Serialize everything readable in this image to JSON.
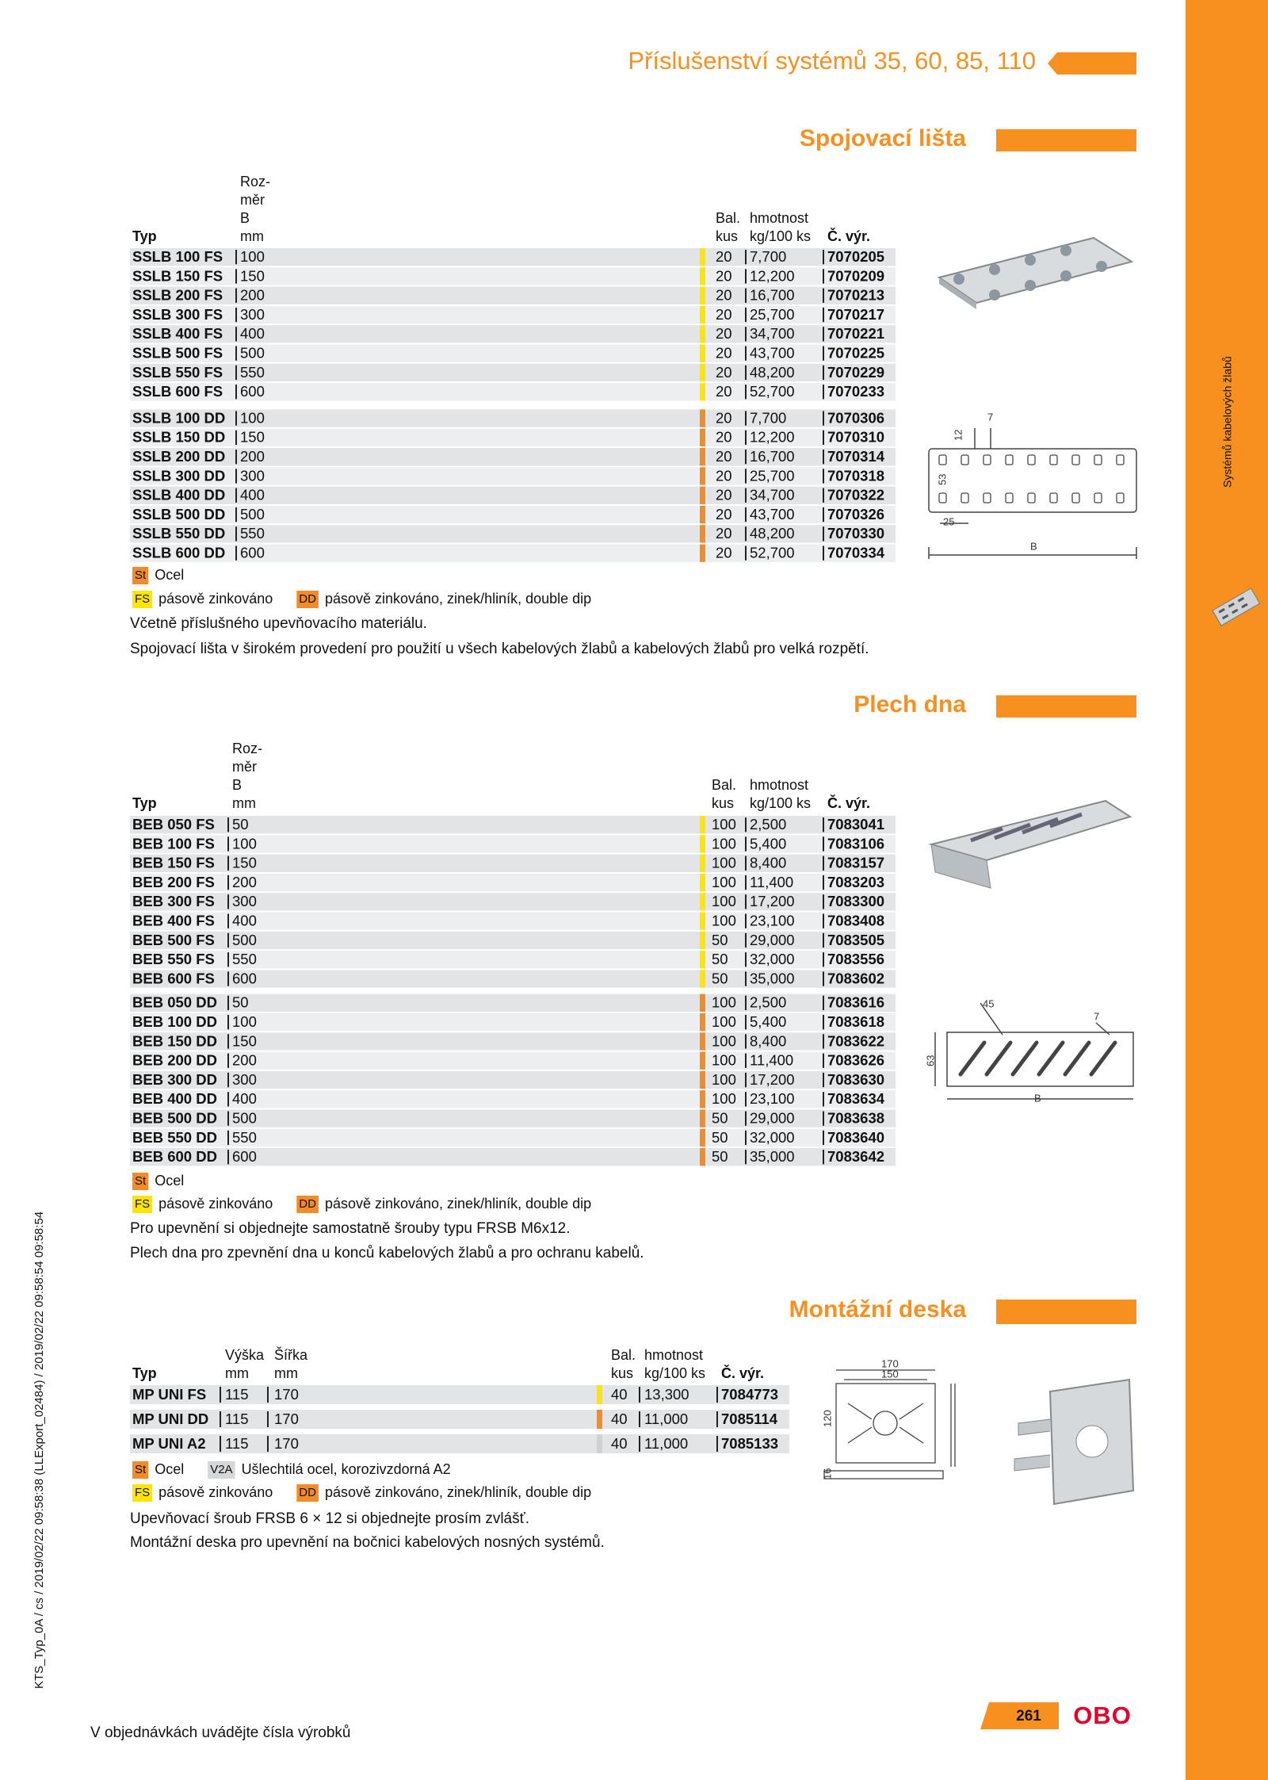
{
  "header": {
    "title": "Příslušenství systémů 35, 60, 85, 110"
  },
  "side_label": "Systémů kabelových žlabů",
  "margin_note": "KTS_Typ_0A / cs / 2019/02/22 09:58:38 (LLExport_02484) / 2019/02/22 09:58:54 09:58:54",
  "sections": [
    {
      "title": "Spojovací lišta",
      "columns": [
        [
          "Typ"
        ],
        [
          "Roz-",
          "měr",
          "B",
          "mm"
        ],
        [
          "Bal.",
          "kus"
        ],
        [
          "hmotnost",
          "kg/100 ks"
        ],
        [
          "Č. výr."
        ]
      ],
      "groups": [
        [
          [
            "SSLB 100 FS",
            "100",
            "20",
            "7,700",
            "7070205"
          ],
          [
            "SSLB 150 FS",
            "150",
            "20",
            "12,200",
            "7070209"
          ],
          [
            "SSLB 200 FS",
            "200",
            "20",
            "16,700",
            "7070213"
          ],
          [
            "SSLB 300 FS",
            "300",
            "20",
            "25,700",
            "7070217"
          ],
          [
            "SSLB 400 FS",
            "400",
            "20",
            "34,700",
            "7070221"
          ],
          [
            "SSLB 500 FS",
            "500",
            "20",
            "43,700",
            "7070225"
          ],
          [
            "SSLB 550 FS",
            "550",
            "20",
            "48,200",
            "7070229"
          ],
          [
            "SSLB 600 FS",
            "600",
            "20",
            "52,700",
            "7070233"
          ]
        ],
        [
          [
            "SSLB 100 DD",
            "100",
            "20",
            "7,700",
            "7070306"
          ],
          [
            "SSLB 150 DD",
            "150",
            "20",
            "12,200",
            "7070310"
          ],
          [
            "SSLB 200 DD",
            "200",
            "20",
            "16,700",
            "7070314"
          ],
          [
            "SSLB 300 DD",
            "300",
            "20",
            "25,700",
            "7070318"
          ],
          [
            "SSLB 400 DD",
            "400",
            "20",
            "34,700",
            "7070322"
          ],
          [
            "SSLB 500 DD",
            "500",
            "20",
            "43,700",
            "7070326"
          ],
          [
            "SSLB 550 DD",
            "550",
            "20",
            "48,200",
            "7070330"
          ],
          [
            "SSLB 600 DD",
            "600",
            "20",
            "52,700",
            "7070334"
          ]
        ]
      ],
      "legend": [
        [
          {
            "code": "St",
            "text": "Ocel"
          }
        ],
        [
          {
            "code": "FS",
            "text": "pásově zinkováno"
          },
          {
            "code": "DD",
            "text": "pásově zinkováno, zinek/hliník, double dip"
          }
        ]
      ],
      "notes": [
        "Včetně příslušného upevňovacího materiálu.",
        "Spojovací lišta v širokém provedení pro použití u všech kabelových žlabů a kabelových žlabů pro velká rozpětí."
      ],
      "drawing_labels": [
        "7",
        "12",
        "53",
        "25",
        "B"
      ]
    },
    {
      "title": "Plech dna",
      "columns": [
        [
          "Typ"
        ],
        [
          "Roz-",
          "měr",
          "B",
          "mm"
        ],
        [
          "Bal.",
          "kus"
        ],
        [
          "hmotnost",
          "kg/100 ks"
        ],
        [
          "Č. výr."
        ]
      ],
      "groups": [
        [
          [
            "BEB 050 FS",
            "50",
            "100",
            "2,500",
            "7083041"
          ],
          [
            "BEB 100 FS",
            "100",
            "100",
            "5,400",
            "7083106"
          ],
          [
            "BEB 150 FS",
            "150",
            "100",
            "8,400",
            "7083157"
          ],
          [
            "BEB 200 FS",
            "200",
            "100",
            "11,400",
            "7083203"
          ],
          [
            "BEB 300 FS",
            "300",
            "100",
            "17,200",
            "7083300"
          ],
          [
            "BEB 400 FS",
            "400",
            "100",
            "23,100",
            "7083408"
          ],
          [
            "BEB 500 FS",
            "500",
            "50",
            "29,000",
            "7083505"
          ],
          [
            "BEB 550 FS",
            "550",
            "50",
            "32,000",
            "7083556"
          ],
          [
            "BEB 600 FS",
            "600",
            "50",
            "35,000",
            "7083602"
          ]
        ],
        [
          [
            "BEB 050 DD",
            "50",
            "100",
            "2,500",
            "7083616"
          ],
          [
            "BEB 100 DD",
            "100",
            "100",
            "5,400",
            "7083618"
          ],
          [
            "BEB 150 DD",
            "150",
            "100",
            "8,400",
            "7083622"
          ],
          [
            "BEB 200 DD",
            "200",
            "100",
            "11,400",
            "7083626"
          ],
          [
            "BEB 300 DD",
            "300",
            "100",
            "17,200",
            "7083630"
          ],
          [
            "BEB 400 DD",
            "400",
            "100",
            "23,100",
            "7083634"
          ],
          [
            "BEB 500 DD",
            "500",
            "50",
            "29,000",
            "7083638"
          ],
          [
            "BEB 550 DD",
            "550",
            "50",
            "32,000",
            "7083640"
          ],
          [
            "BEB 600 DD",
            "600",
            "50",
            "35,000",
            "7083642"
          ]
        ]
      ],
      "legend": [
        [
          {
            "code": "St",
            "text": "Ocel"
          }
        ],
        [
          {
            "code": "FS",
            "text": "pásově zinkováno"
          },
          {
            "code": "DD",
            "text": "pásově zinkováno, zinek/hliník, double dip"
          }
        ]
      ],
      "notes": [
        "Pro upevnění si objednejte samostatně šrouby typu FRSB M6x12.",
        "Plech dna pro zpevnění dna u konců kabelových žlabů a pro ochranu kabelů."
      ],
      "drawing_labels": [
        "45",
        "7",
        "63",
        "B"
      ]
    },
    {
      "title": "Montážní deska",
      "columns": [
        [
          "Typ"
        ],
        [
          "Výška",
          "mm"
        ],
        [
          "Šířka",
          "mm"
        ],
        [
          "Bal.",
          "kus"
        ],
        [
          "hmotnost",
          "kg/100 ks"
        ],
        [
          "Č. výr."
        ]
      ],
      "groups": [
        [
          [
            "MP UNI FS",
            "115",
            "170",
            "40",
            "13,300",
            "7084773"
          ]
        ],
        [
          [
            "MP UNI DD",
            "115",
            "170",
            "40",
            "11,000",
            "7085114"
          ]
        ],
        [
          [
            "MP UNI A2",
            "115",
            "170",
            "40",
            "11,000",
            "7085133"
          ]
        ]
      ],
      "legend": [
        [
          {
            "code": "St",
            "text": "Ocel"
          },
          {
            "code": "V2A",
            "text": "Ušlechtilá ocel, korozivzdorná A2"
          }
        ],
        [
          {
            "code": "FS",
            "text": "pásově zinkováno"
          },
          {
            "code": "DD",
            "text": "pásově zinkováno, zinek/hliník, double dip"
          }
        ]
      ],
      "notes": [
        "Upevňovací šroub FRSB 6 × 12 si objednejte prosím zvlášť.",
        "Montážní deska pro upevnění na bočnici kabelových nosných systémů."
      ],
      "drawing_labels": [
        "170",
        "150",
        "120",
        "16"
      ]
    }
  ],
  "footer": {
    "note": "V objednávkách uvádějte čísla výrobků",
    "page": "261",
    "logo": "OBO"
  }
}
